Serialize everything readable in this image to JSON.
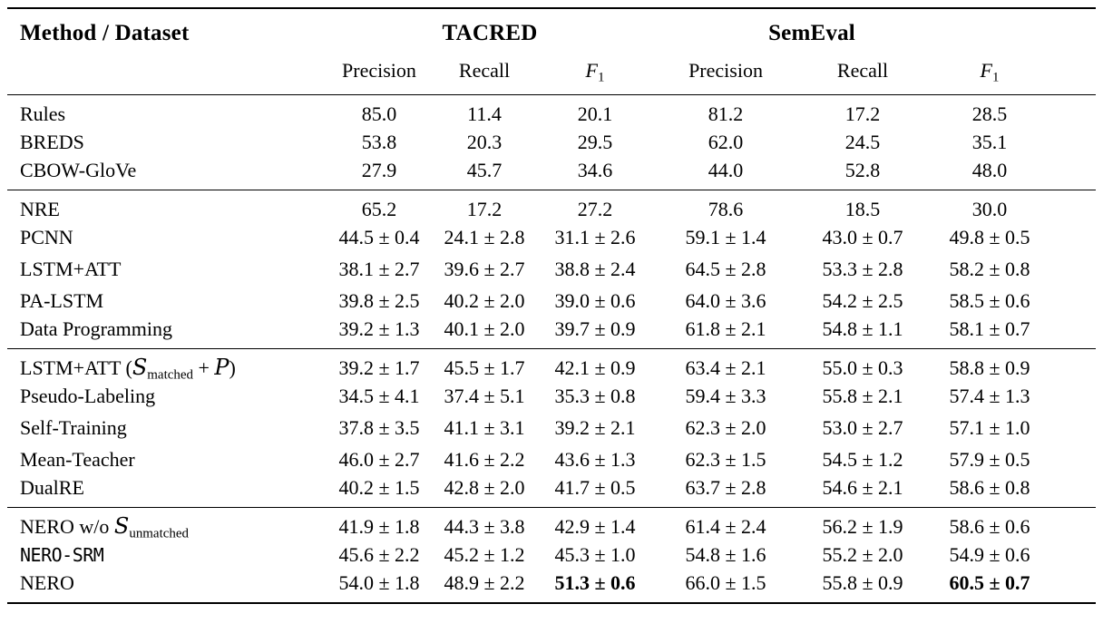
{
  "colors": {
    "background": "#ffffff",
    "text": "#000000",
    "rule": "#000000"
  },
  "table": {
    "corner_header": "Method / Dataset",
    "dataset_groups": [
      {
        "label": "TACRED"
      },
      {
        "label": "SemEval"
      }
    ],
    "metric_headers": [
      {
        "base": "Precision",
        "dataset": "tacred"
      },
      {
        "base": "Recall",
        "dataset": "tacred"
      },
      {
        "base": "F",
        "sub": "1",
        "italic": true,
        "dataset": "tacred"
      },
      {
        "base": "Precision",
        "dataset": "semeval"
      },
      {
        "base": "Recall",
        "dataset": "semeval"
      },
      {
        "base": "F",
        "sub": "1",
        "italic": true,
        "dataset": "semeval"
      }
    ],
    "groups": [
      {
        "rows": [
          {
            "method": "Rules",
            "cells": [
              "85.0",
              "11.4",
              "20.1",
              "81.2",
              "17.2",
              "28.5"
            ]
          },
          {
            "method": "BREDS",
            "cells": [
              "53.8",
              "20.3",
              "29.5",
              "62.0",
              "24.5",
              "35.1"
            ]
          },
          {
            "method": "CBOW-GloVe",
            "cells": [
              "27.9",
              "45.7",
              "34.6",
              "44.0",
              "52.8",
              "48.0"
            ]
          }
        ]
      },
      {
        "rows": [
          {
            "method": "NRE",
            "cells": [
              "65.2",
              "17.2",
              "27.2",
              "78.6",
              "18.5",
              "30.0"
            ]
          },
          {
            "method": "PCNN",
            "cells": [
              "44.5 ± 0.4",
              "24.1 ± 2.8",
              "31.1 ± 2.6",
              "59.1 ± 1.4",
              "43.0 ± 0.7",
              "49.8 ± 0.5"
            ]
          },
          {
            "method": "LSTM+ATT",
            "cells": [
              "38.1 ± 2.7",
              "39.6 ± 2.7",
              "38.8 ± 2.4",
              "64.5 ± 2.8",
              "53.3 ± 2.8",
              "58.2 ± 0.8"
            ]
          },
          {
            "method": "PA-LSTM",
            "cells": [
              "39.8 ± 2.5",
              "40.2 ± 2.0",
              "39.0 ± 0.6",
              "64.0 ± 3.6",
              "54.2 ± 2.5",
              "58.5 ± 0.6"
            ]
          },
          {
            "method": "Data Programming",
            "cells": [
              "39.2 ± 1.3",
              "40.1 ± 2.0",
              "39.7 ± 0.9",
              "61.8 ± 2.1",
              "54.8 ± 1.1",
              "58.1 ± 0.7"
            ]
          }
        ]
      },
      {
        "rows": [
          {
            "method": [
              {
                "t": "LSTM+ATT ("
              },
              {
                "script": "S"
              },
              {
                "sub": "matched"
              },
              {
                "t": " + "
              },
              {
                "script": "P"
              },
              {
                "t": ")"
              }
            ],
            "cells": [
              "39.2 ± 1.7",
              "45.5 ± 1.7",
              "42.1 ± 0.9",
              "63.4 ± 2.1",
              "55.0 ± 0.3",
              "58.8 ± 0.9"
            ]
          },
          {
            "method": "Pseudo-Labeling",
            "cells": [
              "34.5 ± 4.1",
              "37.4 ± 5.1",
              "35.3 ± 0.8",
              "59.4 ± 3.3",
              "55.8 ± 2.1",
              "57.4 ± 1.3"
            ]
          },
          {
            "method": "Self-Training",
            "cells": [
              "37.8 ± 3.5",
              "41.1 ± 3.1",
              "39.2 ± 2.1",
              "62.3 ± 2.0",
              "53.0 ± 2.7",
              "57.1 ± 1.0"
            ]
          },
          {
            "method": "Mean-Teacher",
            "cells": [
              "46.0 ± 2.7",
              "41.6 ± 2.2",
              "43.6 ± 1.3",
              "62.3 ± 1.5",
              "54.5 ± 1.2",
              "57.9 ± 0.5"
            ]
          },
          {
            "method": "DualRE",
            "cells": [
              "40.2 ± 1.5",
              "42.8 ± 2.0",
              "41.7 ± 0.5",
              "63.7 ± 2.8",
              "54.6 ± 2.1",
              "58.6 ± 0.8"
            ]
          }
        ]
      },
      {
        "rows": [
          {
            "method": [
              {
                "t": "NERO w/o "
              },
              {
                "script": "S"
              },
              {
                "sub": "unmatched"
              }
            ],
            "cells": [
              "41.9 ± 1.8",
              "44.3 ± 3.8",
              "42.9 ± 1.4",
              "61.4 ± 2.4",
              "56.2 ± 1.9",
              "58.6 ± 0.6"
            ]
          },
          {
            "method": [
              {
                "tt": "NERO-SRM"
              }
            ],
            "cells": [
              "45.6 ± 2.2",
              "45.2 ± 1.2",
              "45.3 ± 1.0",
              "54.8 ± 1.6",
              "55.2 ± 2.0",
              "54.9 ± 0.6"
            ]
          },
          {
            "method": "NERO",
            "cells": [
              "54.0 ± 1.8",
              "48.9 ± 2.2",
              {
                "v": "51.3 ± 0.6",
                "bold": true
              },
              "66.0 ± 1.5",
              "55.8 ± 0.9",
              {
                "v": "60.5 ± 0.7",
                "bold": true
              }
            ]
          }
        ]
      }
    ]
  }
}
